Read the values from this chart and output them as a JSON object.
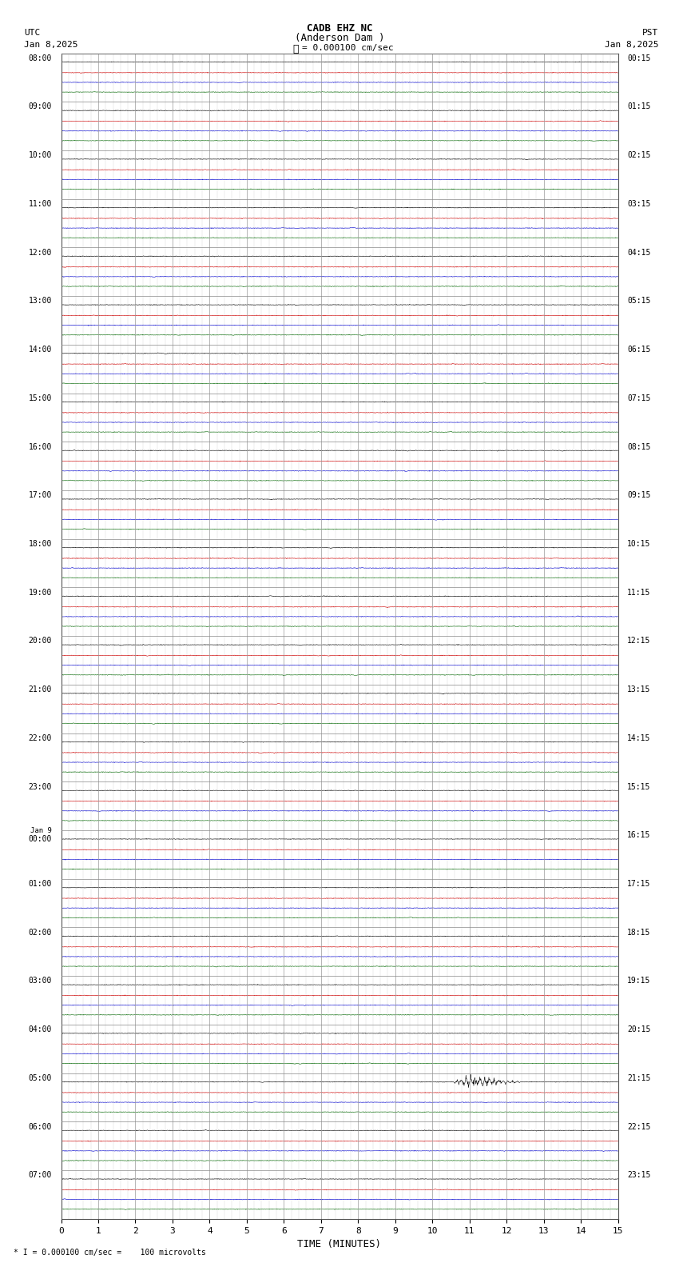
{
  "title_line1": "CADB EHZ NC",
  "title_line2": "(Anderson Dam )",
  "scale_text": "= 0.000100 cm/sec",
  "footer_text": "= 0.000100 cm/sec =    100 microvolts",
  "utc_label": "UTC",
  "utc_date": "Jan 8,2025",
  "pst_label": "PST",
  "pst_date": "Jan 8,2025",
  "xlabel": "TIME (MINUTES)",
  "xticks": [
    0,
    1,
    2,
    3,
    4,
    5,
    6,
    7,
    8,
    9,
    10,
    11,
    12,
    13,
    14,
    15
  ],
  "time_minutes": 15,
  "num_rows": 24,
  "left_times_utc": [
    "08:00",
    "09:00",
    "10:00",
    "11:00",
    "12:00",
    "13:00",
    "14:00",
    "15:00",
    "16:00",
    "17:00",
    "18:00",
    "19:00",
    "20:00",
    "21:00",
    "22:00",
    "23:00",
    "Jan 9\n00:00",
    "01:00",
    "02:00",
    "03:00",
    "04:00",
    "05:00",
    "06:00",
    "07:00"
  ],
  "right_times_pst": [
    "00:15",
    "01:15",
    "02:15",
    "03:15",
    "04:15",
    "05:15",
    "06:15",
    "07:15",
    "08:15",
    "09:15",
    "10:15",
    "11:15",
    "12:15",
    "13:15",
    "14:15",
    "15:15",
    "16:15",
    "17:15",
    "18:15",
    "19:15",
    "20:15",
    "21:15",
    "22:15",
    "23:15"
  ],
  "trace_colors": [
    "#000000",
    "#cc0000",
    "#0000cc",
    "#006600"
  ],
  "noise_amp": 0.003,
  "event_row": 21,
  "event_minute": 10.5,
  "event_amplitude": 0.12,
  "background_color": "#ffffff",
  "grid_color": "#999999",
  "minor_grid_color": "#cccccc",
  "row_line_color": "#888888"
}
